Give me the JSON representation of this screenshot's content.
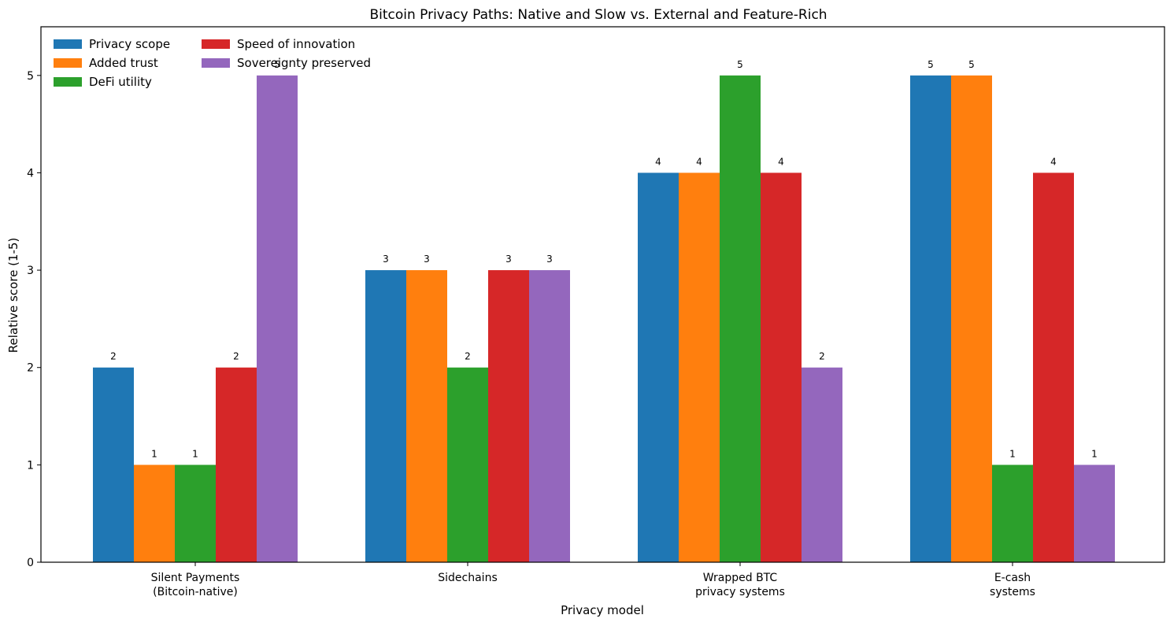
{
  "chart_data": {
    "type": "bar",
    "title": "Bitcoin Privacy Paths: Native and Slow vs. External and Feature-Rich",
    "xlabel": "Privacy model",
    "ylabel": "Relative score (1-5)",
    "ylim": [
      0,
      5.5
    ],
    "yticks": [
      "0",
      "1",
      "2",
      "3",
      "4",
      "5"
    ],
    "categories": [
      [
        "Silent Payments",
        "(Bitcoin-native)"
      ],
      [
        "Sidechains"
      ],
      [
        "Wrapped BTC",
        "privacy systems"
      ],
      [
        "E-cash",
        "systems"
      ]
    ],
    "series": [
      {
        "name": "Privacy scope",
        "color": "#1f77b4",
        "values": [
          2,
          3,
          4,
          5
        ]
      },
      {
        "name": "Added trust",
        "color": "#ff7f0e",
        "values": [
          1,
          3,
          4,
          5
        ]
      },
      {
        "name": "DeFi utility",
        "color": "#2ca02c",
        "values": [
          1,
          2,
          5,
          1
        ]
      },
      {
        "name": "Speed of innovation",
        "color": "#d62728",
        "values": [
          2,
          3,
          4,
          4
        ]
      },
      {
        "name": "Sovereignty preserved",
        "color": "#9467bd",
        "values": [
          5,
          3,
          2,
          1
        ]
      }
    ],
    "data_labels": [
      [
        "2",
        "1",
        "1",
        "2",
        "5"
      ],
      [
        "3",
        "3",
        "2",
        "3",
        "3"
      ],
      [
        "4",
        "4",
        "5",
        "4",
        "2"
      ],
      [
        "5",
        "5",
        "1",
        "4",
        "1"
      ]
    ],
    "legend_position": "top-left",
    "legend_columns": 2,
    "grid": false
  }
}
